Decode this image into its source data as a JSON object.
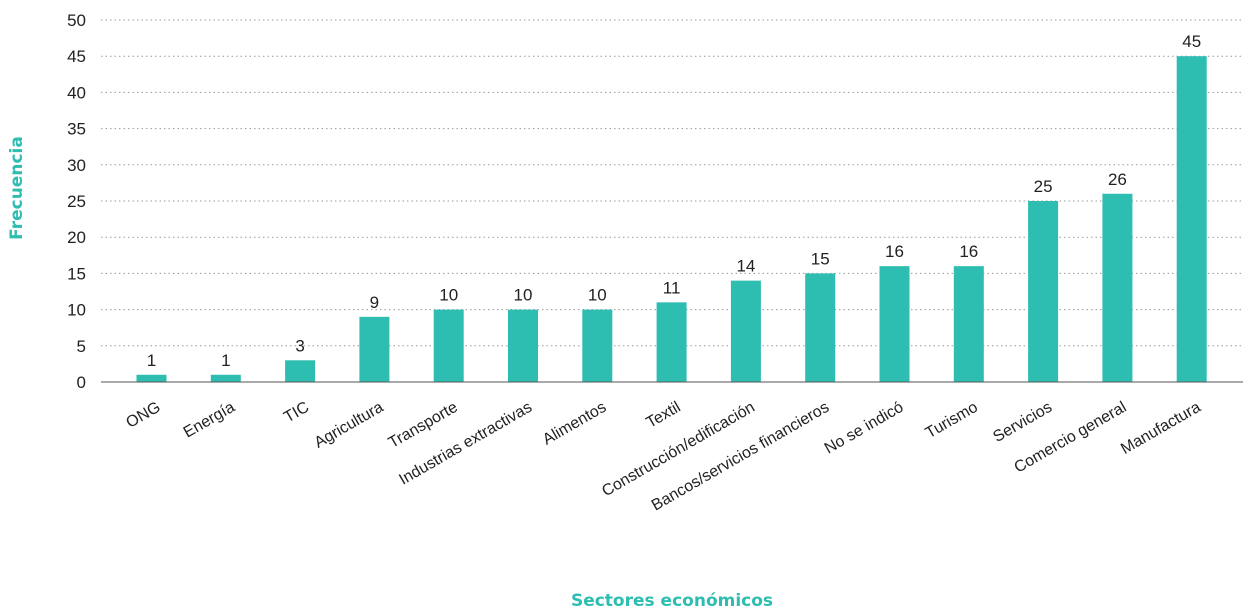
{
  "chart_data": {
    "type": "bar",
    "title": "",
    "xlabel": "Sectores económicos",
    "ylabel": "Frecuencia",
    "ylim": [
      0,
      50
    ],
    "yticks": [
      0,
      5,
      10,
      15,
      20,
      25,
      30,
      35,
      40,
      45,
      50
    ],
    "grid": true,
    "categories": [
      "ONG",
      "Energía",
      "TIC",
      "Agricultura",
      "Transporte",
      "Industrias extractivas",
      "Alimentos",
      "Textil",
      "Construcción/edificación",
      "Bancos/servicios financieros",
      "No se indicó",
      "Turismo",
      "Servicios",
      "Comercio general",
      "Manufactura"
    ],
    "values": [
      1,
      1,
      3,
      9,
      10,
      10,
      10,
      11,
      14,
      15,
      16,
      16,
      25,
      26,
      45
    ],
    "data_labels": [
      "1",
      "1",
      "3",
      "9",
      "10",
      "10",
      "10",
      "11",
      "14",
      "15",
      "16",
      "16",
      "25",
      "26",
      "45"
    ],
    "colors": {
      "bar": "#2dbdb1",
      "axis_title": "#2dbdb1"
    }
  }
}
